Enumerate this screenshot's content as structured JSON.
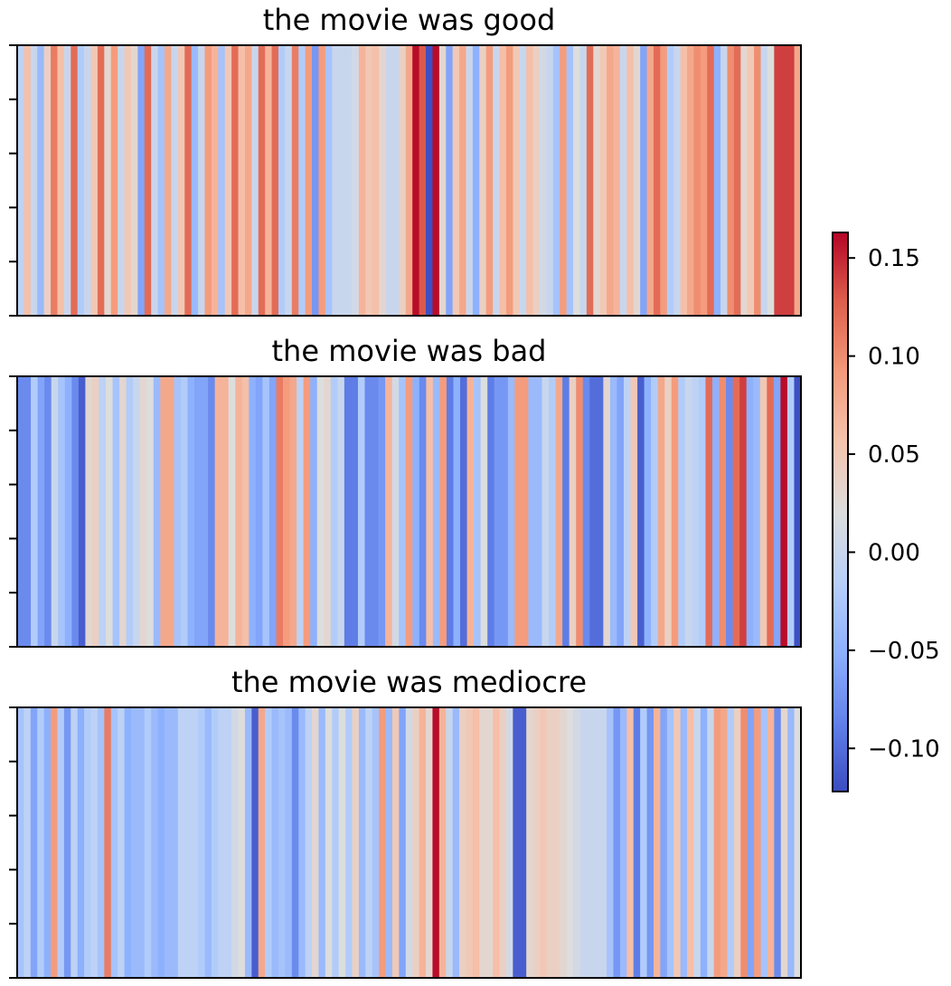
{
  "chart_data": [
    {
      "type": "heatmap",
      "title": "the movie was good",
      "values": [
        -0.01,
        0.06,
        0.0,
        -0.04,
        0.04,
        0.11,
        0.06,
        0.0,
        0.12,
        -0.02,
        0.0,
        0.05,
        0.12,
        0.03,
        0.09,
        0.0,
        0.05,
        0.03,
        -0.06,
        0.12,
        0.0,
        -0.03,
        0.08,
        0.0,
        0.05,
        0.12,
        -0.04,
        0.0,
        0.09,
        0.07,
        -0.03,
        0.05,
        0.12,
        0.06,
        0.08,
        0.0,
        0.12,
        0.07,
        0.12,
        -0.02,
        0.0,
        0.11,
        -0.02,
        0.09,
        -0.07,
        0.09,
        -0.03,
        0.0,
        0.0,
        0.0,
        0.01,
        0.07,
        0.05,
        0.06,
        0.03,
        0.0,
        0.0,
        0.04,
        0.08,
        0.16,
        0.13,
        -0.12,
        0.16,
        0.03,
        -0.06,
        0.05,
        0.08,
        0.0,
        -0.05,
        0.04,
        0.09,
        0.0,
        0.06,
        0.09,
        0.05,
        0.0,
        0.06,
        0.04,
        0.01,
        0.0,
        -0.03,
        0.09,
        -0.03,
        0.02,
        0.0,
        0.12,
        0.03,
        0.05,
        0.08,
        0.07,
        0.0,
        0.06,
        0.03,
        -0.06,
        0.08,
        0.12,
        0.09,
        -0.02,
        0.0,
        0.06,
        0.08,
        0.1,
        0.09,
        0.12,
        -0.05,
        0.0,
        0.1,
        0.12,
        0.03,
        0.05,
        0.1,
        0.0,
        0.02,
        0.14,
        0.14,
        0.14,
        0.08
      ]
    },
    {
      "type": "heatmap",
      "title": "the movie was bad",
      "values": [
        -0.08,
        -0.08,
        -0.02,
        -0.06,
        -0.08,
        0.0,
        -0.03,
        -0.05,
        -0.08,
        -0.11,
        0.03,
        0.04,
        -0.01,
        0.02,
        -0.03,
        0.03,
        -0.02,
        0.0,
        0.03,
        0.02,
        -0.04,
        0.08,
        0.08,
        -0.03,
        -0.02,
        -0.05,
        -0.06,
        -0.06,
        -0.08,
        0.07,
        0.07,
        0.02,
        0.07,
        0.06,
        -0.05,
        -0.06,
        -0.03,
        -0.06,
        0.11,
        0.09,
        0.08,
        -0.01,
        0.09,
        -0.05,
        0.02,
        0.03,
        -0.02,
        0.0,
        -0.09,
        -0.09,
        -0.02,
        -0.08,
        -0.08,
        -0.07,
        0.07,
        0.01,
        -0.03,
        0.09,
        -0.05,
        -0.08,
        0.06,
        -0.04,
        0.09,
        -0.09,
        -0.05,
        -0.1,
        0.07,
        -0.03,
        0.02,
        -0.09,
        -0.07,
        -0.07,
        -0.04,
        0.09,
        0.09,
        -0.04,
        -0.04,
        0.0,
        -0.02,
        0.08,
        -0.09,
        0.04,
        0.1,
        -0.08,
        -0.1,
        -0.1,
        0.03,
        -0.04,
        -0.06,
        -0.01,
        0.05,
        -0.11,
        -0.05,
        -0.02,
        0.08,
        0.04,
        0.09,
        -0.02,
        0.0,
        -0.01,
        -0.02,
        0.12,
        -0.05,
        0.1,
        -0.08,
        0.12,
        0.14,
        -0.05,
        -0.04,
        0.05,
        0.12,
        -0.06,
        0.16,
        -0.02,
        -0.12
      ]
    },
    {
      "type": "heatmap",
      "title": "the movie was mediocre",
      "values": [
        -0.03,
        -0.01,
        -0.06,
        -0.02,
        -0.05,
        0.09,
        -0.02,
        -0.07,
        -0.01,
        -0.05,
        -0.02,
        -0.01,
        -0.03,
        0.11,
        -0.03,
        -0.01,
        -0.05,
        -0.04,
        -0.04,
        -0.02,
        -0.04,
        -0.05,
        -0.04,
        -0.04,
        -0.01,
        -0.01,
        -0.01,
        -0.02,
        -0.04,
        -0.02,
        -0.01,
        -0.01,
        0.01,
        0.02,
        -0.04,
        -0.11,
        0.08,
        -0.02,
        -0.04,
        -0.03,
        -0.04,
        -0.08,
        -0.04,
        -0.01,
        0.03,
        -0.04,
        0.02,
        -0.02,
        0.02,
        -0.02,
        0.04,
        -0.04,
        -0.01,
        -0.03,
        0.09,
        -0.04,
        0.05,
        -0.06,
        0.01,
        0.04,
        0.07,
        0.03,
        0.16,
        0.07,
        0.0,
        -0.04,
        0.04,
        0.05,
        0.06,
        0.03,
        0.03,
        0.06,
        0.04,
        0.01,
        -0.11,
        -0.11,
        0.03,
        0.04,
        0.05,
        0.04,
        0.04,
        0.03,
        0.02,
        0.01,
        0.0,
        0.0,
        0.0,
        0.0,
        -0.03,
        -0.07,
        -0.04,
        0.06,
        -0.09,
        -0.02,
        -0.07,
        0.07,
        -0.06,
        -0.03,
        0.05,
        -0.04,
        0.06,
        0.0,
        -0.05,
        0.0,
        0.09,
        0.08,
        -0.02,
        0.04,
        0.1,
        -0.06,
        0.09,
        -0.03,
        0.07,
        -0.08,
        0.03,
        -0.04,
        0.02
      ]
    }
  ],
  "colorbar": {
    "colormap": "coolwarm",
    "vmin": -0.122,
    "vmax": 0.163,
    "ticks": [
      0.15,
      0.1,
      0.05,
      0.0,
      -0.05,
      -0.1
    ],
    "tick_labels": [
      "0.15",
      "0.10",
      "0.05",
      "0.00",
      "−0.05",
      "−0.10"
    ]
  }
}
